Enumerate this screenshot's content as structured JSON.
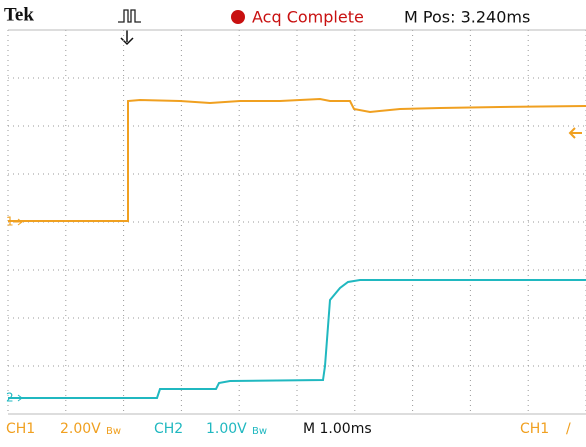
{
  "header": {
    "brand": "Tek",
    "status": "Acq Complete",
    "position": "M Pos: 3.240ms"
  },
  "markers": {
    "ch1": "1",
    "ch2": "2"
  },
  "footer": {
    "ch1": {
      "name": "CH1",
      "scale": "2.00V",
      "bw": "Bw"
    },
    "ch2": {
      "name": "CH2",
      "scale": "1.00V",
      "bw": "Bw"
    },
    "timebase": "M 1.00ms",
    "trigger": {
      "source": "CH1",
      "slope": "/"
    }
  }
}
